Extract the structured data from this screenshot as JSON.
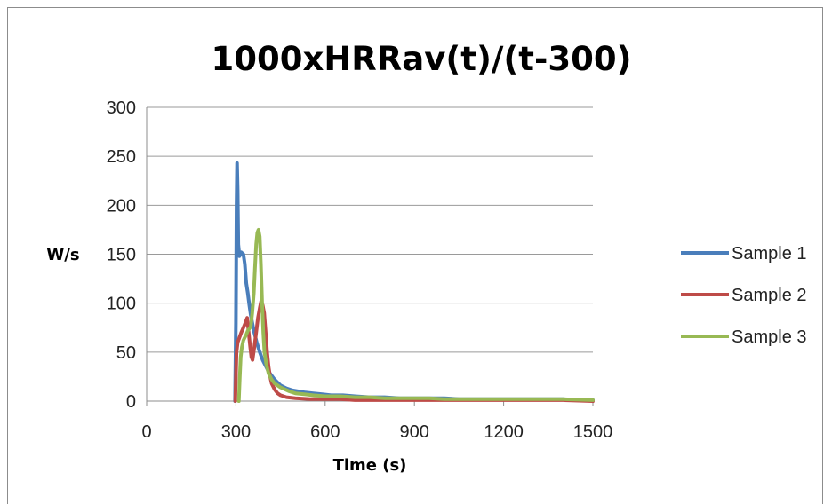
{
  "chart_data": {
    "type": "line",
    "title": "1000xHRRav(t)/(t-300)",
    "xlabel": "Time (s)",
    "ylabel": "W/s",
    "xlim": [
      0,
      1500
    ],
    "ylim": [
      0,
      300
    ],
    "xticks": [
      "0",
      "300",
      "600",
      "900",
      "1200",
      "1500"
    ],
    "yticks": [
      "0",
      "50",
      "100",
      "150",
      "200",
      "250",
      "300"
    ],
    "grid": "horizontal",
    "legend": "right",
    "series": [
      {
        "name": "Sample 1",
        "color": "#4a7ebb",
        "points": [
          [
            297,
            0
          ],
          [
            300,
            80
          ],
          [
            302,
            200
          ],
          [
            304,
            243
          ],
          [
            306,
            215
          ],
          [
            308,
            160
          ],
          [
            312,
            148
          ],
          [
            318,
            152
          ],
          [
            325,
            150
          ],
          [
            330,
            140
          ],
          [
            335,
            120
          ],
          [
            340,
            110
          ],
          [
            345,
            98
          ],
          [
            350,
            88
          ],
          [
            355,
            80
          ],
          [
            360,
            72
          ],
          [
            365,
            66
          ],
          [
            370,
            60
          ],
          [
            375,
            55
          ],
          [
            380,
            50
          ],
          [
            385,
            46
          ],
          [
            390,
            42
          ],
          [
            400,
            36
          ],
          [
            410,
            30
          ],
          [
            420,
            26
          ],
          [
            430,
            22
          ],
          [
            440,
            19
          ],
          [
            450,
            16
          ],
          [
            470,
            13
          ],
          [
            490,
            11
          ],
          [
            510,
            10
          ],
          [
            530,
            9
          ],
          [
            560,
            8
          ],
          [
            590,
            7
          ],
          [
            620,
            6
          ],
          [
            660,
            6
          ],
          [
            700,
            5
          ],
          [
            750,
            4
          ],
          [
            800,
            4
          ],
          [
            850,
            3
          ],
          [
            900,
            3
          ],
          [
            950,
            3
          ],
          [
            1000,
            3
          ],
          [
            1050,
            2
          ],
          [
            1100,
            2
          ],
          [
            1150,
            2
          ],
          [
            1200,
            2
          ],
          [
            1250,
            2
          ],
          [
            1300,
            2
          ],
          [
            1350,
            2
          ],
          [
            1400,
            2
          ],
          [
            1450,
            1
          ],
          [
            1500,
            1
          ]
        ]
      },
      {
        "name": "Sample 2",
        "color": "#be4b48",
        "points": [
          [
            298,
            0
          ],
          [
            302,
            50
          ],
          [
            306,
            60
          ],
          [
            312,
            65
          ],
          [
            318,
            70
          ],
          [
            325,
            75
          ],
          [
            332,
            80
          ],
          [
            338,
            85
          ],
          [
            343,
            70
          ],
          [
            348,
            55
          ],
          [
            352,
            45
          ],
          [
            356,
            42
          ],
          [
            362,
            55
          ],
          [
            368,
            70
          ],
          [
            374,
            85
          ],
          [
            380,
            95
          ],
          [
            385,
            102
          ],
          [
            390,
            98
          ],
          [
            395,
            90
          ],
          [
            400,
            70
          ],
          [
            405,
            50
          ],
          [
            410,
            35
          ],
          [
            415,
            25
          ],
          [
            420,
            18
          ],
          [
            430,
            12
          ],
          [
            440,
            8
          ],
          [
            450,
            6
          ],
          [
            470,
            4
          ],
          [
            500,
            3
          ],
          [
            550,
            2
          ],
          [
            600,
            2
          ],
          [
            650,
            2
          ],
          [
            700,
            1
          ],
          [
            800,
            1
          ],
          [
            900,
            1
          ],
          [
            1000,
            1
          ],
          [
            1100,
            1
          ],
          [
            1200,
            1
          ],
          [
            1300,
            1
          ],
          [
            1400,
            1
          ],
          [
            1500,
            0
          ]
        ]
      },
      {
        "name": "Sample 3",
        "color": "#98b954",
        "points": [
          [
            310,
            0
          ],
          [
            313,
            25
          ],
          [
            316,
            45
          ],
          [
            320,
            55
          ],
          [
            325,
            62
          ],
          [
            330,
            65
          ],
          [
            335,
            68
          ],
          [
            340,
            72
          ],
          [
            345,
            74
          ],
          [
            350,
            76
          ],
          [
            355,
            90
          ],
          [
            360,
            110
          ],
          [
            364,
            135
          ],
          [
            368,
            160
          ],
          [
            372,
            172
          ],
          [
            376,
            175
          ],
          [
            380,
            168
          ],
          [
            384,
            140
          ],
          [
            388,
            100
          ],
          [
            392,
            70
          ],
          [
            396,
            50
          ],
          [
            402,
            38
          ],
          [
            410,
            28
          ],
          [
            420,
            22
          ],
          [
            430,
            18
          ],
          [
            440,
            16
          ],
          [
            450,
            14
          ],
          [
            465,
            12
          ],
          [
            480,
            10
          ],
          [
            500,
            8
          ],
          [
            530,
            7
          ],
          [
            560,
            6
          ],
          [
            600,
            5
          ],
          [
            650,
            5
          ],
          [
            700,
            4
          ],
          [
            750,
            4
          ],
          [
            800,
            3
          ],
          [
            850,
            3
          ],
          [
            900,
            3
          ],
          [
            950,
            3
          ],
          [
            1000,
            2
          ],
          [
            1100,
            2
          ],
          [
            1200,
            2
          ],
          [
            1300,
            2
          ],
          [
            1400,
            2
          ],
          [
            1500,
            1
          ]
        ]
      }
    ]
  }
}
